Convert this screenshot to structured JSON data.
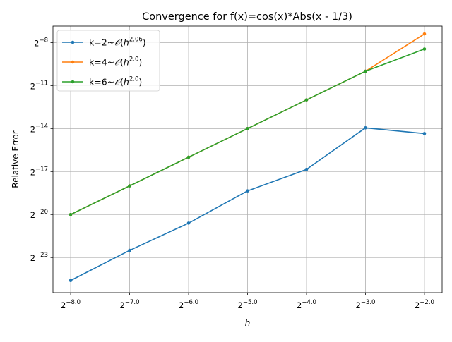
{
  "chart_data": {
    "type": "line",
    "title": "Convergence for f(x)=cos(x)*Abs(x - 1/3)",
    "xlabel": "h",
    "ylabel": "Relative Error",
    "x_scale": "log2",
    "y_scale": "log2",
    "grid": true,
    "legend_position": "top-left",
    "x_ticks": [
      {
        "value": -8,
        "label_base": "2",
        "label_exp": "−8.0"
      },
      {
        "value": -7,
        "label_base": "2",
        "label_exp": "−7.0"
      },
      {
        "value": -6,
        "label_base": "2",
        "label_exp": "−6.0"
      },
      {
        "value": -5,
        "label_base": "2",
        "label_exp": "−5.0"
      },
      {
        "value": -4,
        "label_base": "2",
        "label_exp": "−4.0"
      },
      {
        "value": -3,
        "label_base": "2",
        "label_exp": "−3.0"
      },
      {
        "value": -2,
        "label_base": "2",
        "label_exp": "−2.0"
      }
    ],
    "y_ticks": [
      {
        "value": -23,
        "label_base": "2",
        "label_exp": "−23"
      },
      {
        "value": -20,
        "label_base": "2",
        "label_exp": "−20"
      },
      {
        "value": -17,
        "label_base": "2",
        "label_exp": "−17"
      },
      {
        "value": -14,
        "label_base": "2",
        "label_exp": "−14"
      },
      {
        "value": -11,
        "label_base": "2",
        "label_exp": "−11"
      },
      {
        "value": -8,
        "label_base": "2",
        "label_exp": "−8"
      }
    ],
    "xlim_log2": [
      -8.3,
      -1.7
    ],
    "ylim_log2": [
      -25.45,
      -6.85
    ],
    "x": [
      0.00390625,
      0.0078125,
      0.015625,
      0.03125,
      0.0625,
      0.125,
      0.25
    ],
    "series": [
      {
        "label_prefix": "k=2~",
        "label_O": "𝒪",
        "label_paren_open": "(",
        "label_h": "h",
        "label_exp": "2.06",
        "label_paren_close": ")",
        "color": "#1f77b4",
        "log2_values": [
          -24.6,
          -22.5,
          -20.6,
          -18.35,
          -16.85,
          -13.95,
          -14.35
        ]
      },
      {
        "label_prefix": "k=4~",
        "label_O": "𝒪",
        "label_paren_open": "(",
        "label_h": "h",
        "label_exp": "2.0",
        "label_paren_close": ")",
        "color": "#ff7f0e",
        "log2_values": [
          -20.0,
          -18.0,
          -16.0,
          -14.0,
          -12.0,
          -10.0,
          -7.4
        ]
      },
      {
        "label_prefix": "k=6~",
        "label_O": "𝒪",
        "label_paren_open": "(",
        "label_h": "h",
        "label_exp": "2.0",
        "label_paren_close": ")",
        "color": "#2ca02c",
        "log2_values": [
          -20.0,
          -18.0,
          -16.0,
          -14.0,
          -12.0,
          -10.0,
          -8.45
        ]
      }
    ]
  }
}
